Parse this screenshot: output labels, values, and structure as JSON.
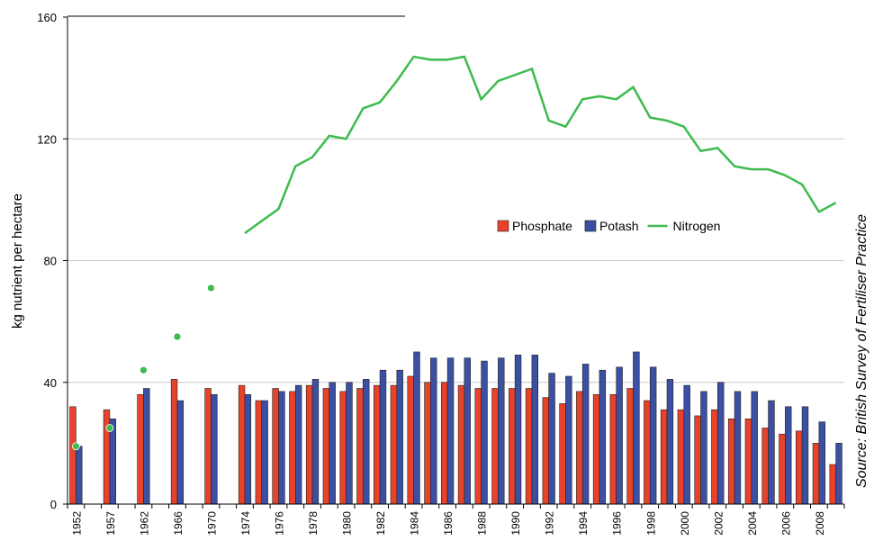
{
  "chart_data": {
    "type": "bar_line",
    "y_label": "kg nutrient per hectare",
    "source": "Source: British Survey of Fertiliser Practice",
    "categories": [
      "1952",
      null,
      "1957",
      null,
      "1962",
      null,
      "1966",
      null,
      "1970",
      null,
      "1974",
      null,
      "1976",
      null,
      "1978",
      null,
      "1980",
      null,
      "1982",
      null,
      "1984",
      null,
      "1986",
      null,
      "1988",
      null,
      "1990",
      null,
      "1992",
      null,
      "1994",
      null,
      "1996",
      null,
      "1998",
      null,
      "2000",
      null,
      "2002",
      null,
      "2004",
      null,
      "2006",
      null,
      "2008",
      null
    ],
    "series": [
      {
        "name": "Phosphate",
        "kind": "bar",
        "color": "#e8422b",
        "values": [
          32,
          null,
          31,
          null,
          36,
          null,
          41,
          null,
          38,
          null,
          39,
          34,
          38,
          37,
          39,
          38,
          37,
          38,
          39,
          39,
          42,
          40,
          40,
          39,
          38,
          38,
          38,
          38,
          35,
          33,
          37,
          36,
          36,
          38,
          34,
          31,
          31,
          29,
          31,
          28,
          28,
          25,
          23,
          24,
          20,
          13
        ]
      },
      {
        "name": "Potash",
        "kind": "bar",
        "color": "#3b4fa3",
        "values": [
          19,
          null,
          28,
          null,
          38,
          null,
          34,
          null,
          36,
          null,
          36,
          34,
          37,
          39,
          41,
          40,
          40,
          41,
          44,
          44,
          50,
          48,
          48,
          48,
          47,
          48,
          49,
          49,
          43,
          42,
          46,
          44,
          45,
          50,
          45,
          41,
          39,
          37,
          40,
          37,
          37,
          34,
          32,
          32,
          27,
          20
        ]
      },
      {
        "name": "Nitrogen",
        "kind": "line",
        "color": "#3dbb4e",
        "values": [
          19,
          null,
          25,
          null,
          44,
          null,
          55,
          null,
          71,
          null,
          89,
          93,
          97,
          111,
          114,
          121,
          120,
          130,
          132,
          139,
          147,
          146,
          146,
          147,
          133,
          139,
          141,
          143,
          126,
          124,
          133,
          134,
          133,
          137,
          127,
          126,
          124,
          116,
          117,
          111,
          110,
          110,
          108,
          105,
          96,
          99
        ]
      }
    ],
    "ylim": [
      0,
      160
    ],
    "yticks": [
      0,
      40,
      80,
      120,
      160
    ],
    "grid": true
  }
}
